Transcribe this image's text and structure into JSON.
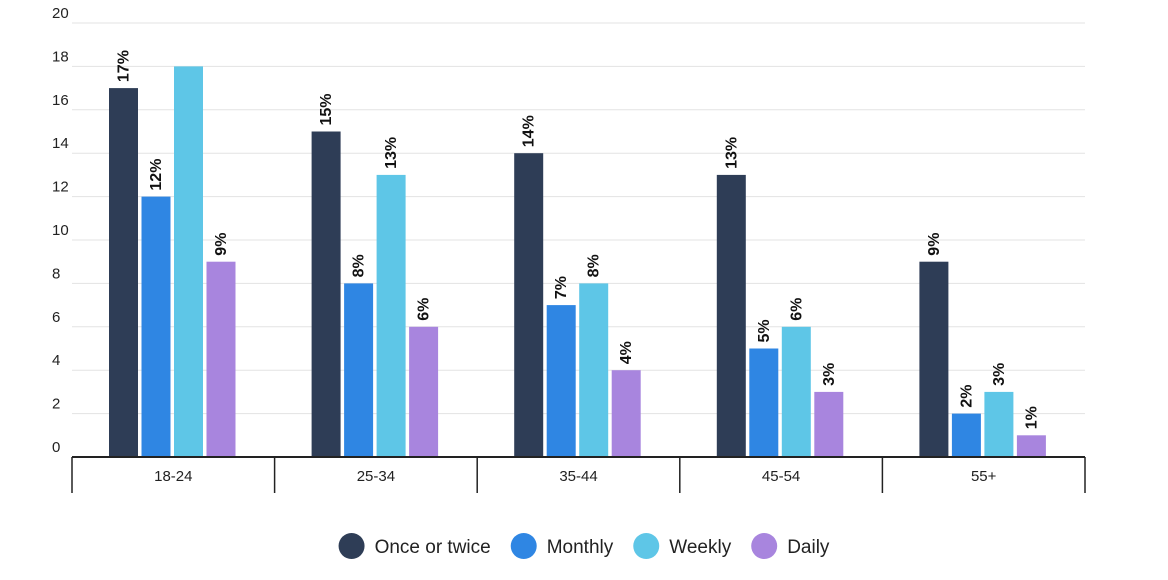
{
  "chart_data": {
    "type": "bar",
    "title": "",
    "xlabel": "",
    "ylabel": "",
    "ylim": [
      0,
      20
    ],
    "yticks": [
      0,
      2,
      4,
      6,
      8,
      10,
      12,
      14,
      16,
      18,
      20
    ],
    "grid": true,
    "legend_position": "bottom-center",
    "categories": [
      "18-24",
      "25-34",
      "35-44",
      "45-54",
      "55+"
    ],
    "series": [
      {
        "name": "Once or twice",
        "color": "#2e3d56",
        "values": [
          17,
          15,
          14,
          13,
          9
        ],
        "labels": [
          "17%",
          "15%",
          "14%",
          "13%",
          "9%"
        ]
      },
      {
        "name": "Monthly",
        "color": "#2f86e3",
        "values": [
          12,
          8,
          7,
          5,
          2
        ],
        "labels": [
          "12%",
          "8%",
          "7%",
          "5%",
          "2%"
        ]
      },
      {
        "name": "Weekly",
        "color": "#5ec6e7",
        "values": [
          18,
          13,
          8,
          6,
          3
        ],
        "labels": [
          "",
          "13%",
          "8%",
          "6%",
          "3%"
        ]
      },
      {
        "name": "Daily",
        "color": "#a885de",
        "values": [
          9,
          6,
          4,
          3,
          1
        ],
        "labels": [
          "9%",
          "6%",
          "4%",
          "3%",
          "1%"
        ]
      }
    ]
  }
}
